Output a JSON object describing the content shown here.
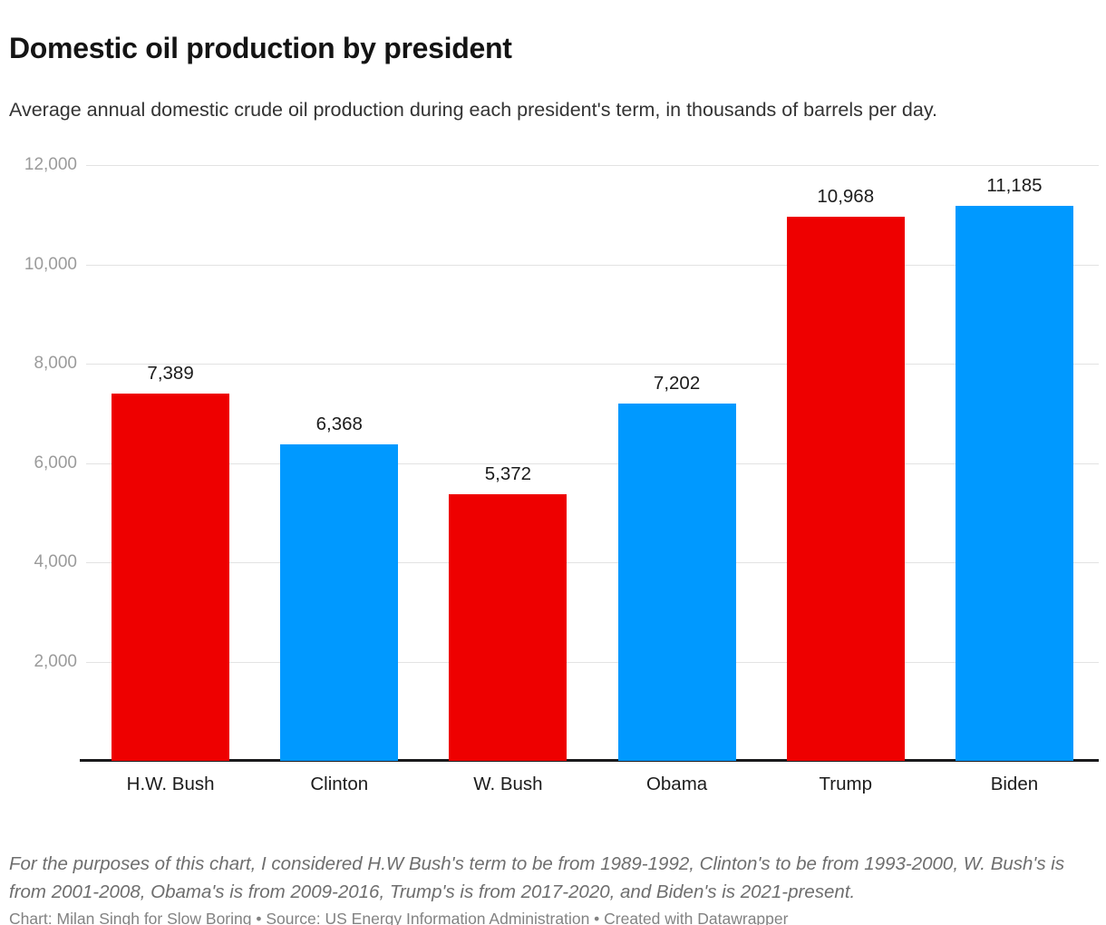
{
  "header": {
    "title": "Domestic oil production by president",
    "subtitle": "Average annual domestic crude oil production during each president's term, in thousands of barrels per day."
  },
  "chart_data": {
    "type": "bar",
    "categories": [
      "H.W. Bush",
      "Clinton",
      "W. Bush",
      "Obama",
      "Trump",
      "Biden"
    ],
    "values": [
      7389,
      6368,
      5372,
      7202,
      10968,
      11185
    ],
    "value_labels": [
      "7,389",
      "6,368",
      "5,372",
      "7,202",
      "10,968",
      "11,185"
    ],
    "bar_colors": [
      "#ee0000",
      "#0099ff",
      "#ee0000",
      "#0099ff",
      "#ee0000",
      "#0099ff"
    ],
    "title": "Domestic oil production by president",
    "xlabel": "",
    "ylabel": "",
    "ylim": [
      0,
      12000
    ],
    "yticks": [
      2000,
      4000,
      6000,
      8000,
      10000,
      12000
    ],
    "ytick_labels": [
      "2,000",
      "4,000",
      "6,000",
      "8,000",
      "10,000",
      "12,000"
    ],
    "grid": true,
    "legend_position": "none"
  },
  "colors": {
    "republican_red": "#ee0000",
    "democrat_blue": "#0099ff",
    "gridline": "#e3e3e3",
    "axis_text": "#9b9b9b"
  },
  "footer": {
    "note": "For the purposes of this chart, I considered H.W Bush's term to be from 1989-1992, Clinton's to be from 1993-2000, W. Bush's is from 2001-2008, Obama's is from 2009-2016, Trump's is from 2017-2020, and Biden's is 2021-present.",
    "byline": "Chart: Milan Singh for Slow Boring • Source: US Energy Information Administration • Created with Datawrapper"
  }
}
